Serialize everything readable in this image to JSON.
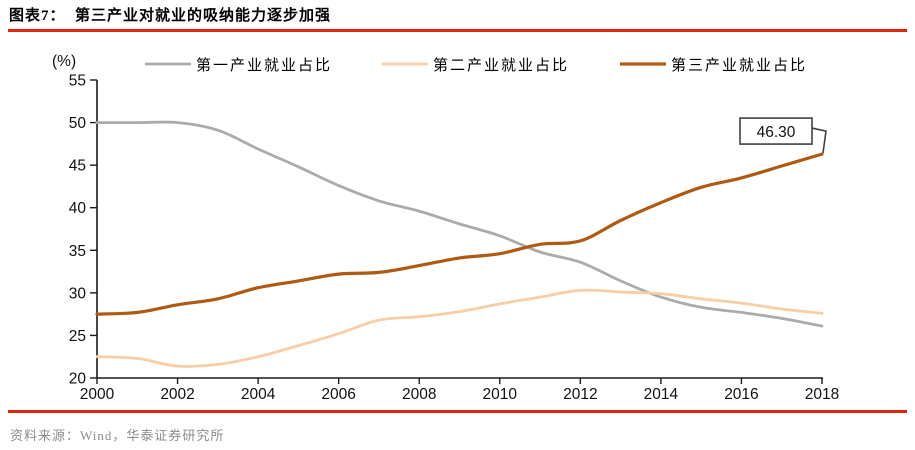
{
  "header": {
    "title": "图表7：  第三产业对就业的吸纳能力逐步加强"
  },
  "footer": {
    "source": "资料来源：Wind，华泰证券研究所"
  },
  "colors": {
    "accent_red": "#e2250d",
    "axis": "#1a1a1a",
    "tick_text": "#111111",
    "legend_text": "#000000",
    "footer_text": "#8c8c8c",
    "callout_border": "#404040",
    "series_primary": "#ababab",
    "series_secondary": "#f9cda7",
    "series_tertiary": "#af5a13"
  },
  "chart_data": {
    "type": "line",
    "title": "第三产业对就业的吸纳能力逐步加强",
    "xlabel": "",
    "ylabel": "(%)",
    "unit_label": "(%)",
    "x": [
      2000,
      2001,
      2002,
      2003,
      2004,
      2005,
      2006,
      2007,
      2008,
      2009,
      2010,
      2011,
      2012,
      2013,
      2014,
      2015,
      2016,
      2017,
      2018
    ],
    "x_tick_labels": [
      "2000",
      "2002",
      "2004",
      "2006",
      "2008",
      "2010",
      "2012",
      "2014",
      "2016",
      "2018"
    ],
    "xlim": [
      2000,
      2018
    ],
    "ylim": [
      20,
      55
    ],
    "y_ticks": [
      20,
      25,
      30,
      35,
      40,
      45,
      50,
      55
    ],
    "grid": false,
    "legend_position": "top",
    "series": [
      {
        "name": "第一产业就业占比",
        "color_key": "series_primary",
        "values": [
          50.0,
          50.0,
          50.0,
          49.1,
          46.9,
          44.8,
          42.6,
          40.8,
          39.6,
          38.1,
          36.7,
          34.8,
          33.6,
          31.4,
          29.5,
          28.3,
          27.7,
          27.0,
          26.1
        ]
      },
      {
        "name": "第二产业就业占比",
        "color_key": "series_secondary",
        "values": [
          22.5,
          22.3,
          21.4,
          21.6,
          22.5,
          23.8,
          25.2,
          26.8,
          27.2,
          27.8,
          28.7,
          29.5,
          30.3,
          30.1,
          29.9,
          29.3,
          28.8,
          28.1,
          27.6
        ]
      },
      {
        "name": "第三产业就业占比",
        "color_key": "series_tertiary",
        "values": [
          27.5,
          27.7,
          28.6,
          29.3,
          30.6,
          31.4,
          32.2,
          32.4,
          33.2,
          34.1,
          34.6,
          35.7,
          36.1,
          38.5,
          40.6,
          42.4,
          43.5,
          44.9,
          46.3
        ]
      }
    ],
    "annotation": {
      "label": "46.30",
      "series": "第三产业就业占比",
      "year": 2018,
      "value": 46.3
    }
  }
}
